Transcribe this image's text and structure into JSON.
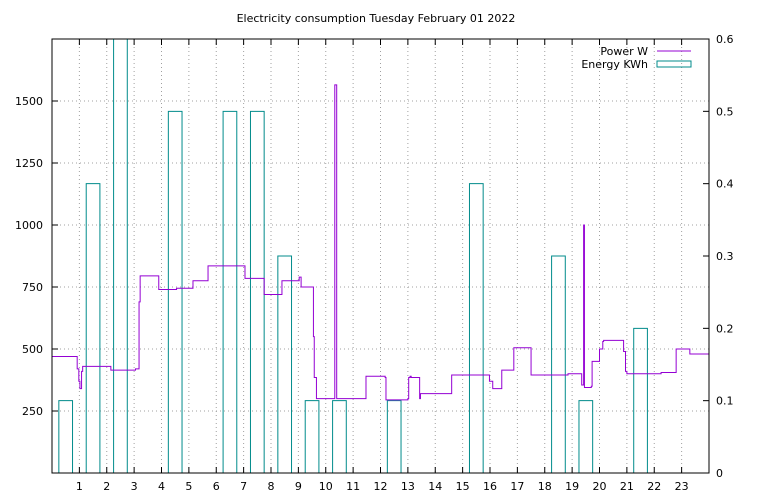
{
  "chart_data": {
    "type": "line",
    "title": "Electricity consumption Tuesday February 01 2022",
    "xlabel": "",
    "ylabel": "",
    "xlim": [
      0,
      24
    ],
    "ylim_left": [
      0,
      1750
    ],
    "ylim_right": [
      0,
      0.6
    ],
    "grid": true,
    "legend_position": "top-right",
    "x_ticks": [
      1,
      2,
      3,
      4,
      5,
      6,
      7,
      8,
      9,
      10,
      11,
      12,
      13,
      14,
      15,
      16,
      17,
      18,
      19,
      20,
      21,
      22,
      23
    ],
    "y_ticks_left": [
      250,
      500,
      750,
      1000,
      1250,
      1500
    ],
    "y_ticks_right": [
      0,
      0.1,
      0.2,
      0.3,
      0.4,
      0.5,
      0.6
    ],
    "series": [
      {
        "name": "Power W",
        "axis": "left",
        "kind": "step",
        "color": "#9400d3",
        "x": [
          0,
          0.92,
          0.98,
          1.02,
          1.08,
          1.12,
          2.12,
          2.15,
          3.02,
          3.05,
          3.18,
          3.22,
          3.85,
          3.9,
          4.5,
          4.55,
          5.1,
          5.15,
          5.65,
          5.7,
          7.0,
          7.05,
          7.7,
          7.75,
          8.35,
          8.4,
          9.0,
          9.03,
          9.06,
          9.1,
          9.55,
          9.58,
          9.62,
          9.66,
          10.3,
          10.33,
          10.4,
          11.43,
          11.47,
          12.17,
          12.2,
          13.0,
          13.03,
          13.08,
          13.12,
          13.43,
          13.46,
          14.6,
          14.65,
          15.98,
          16.0,
          16.1,
          16.43,
          16.47,
          16.87,
          16.92,
          17.5,
          17.55,
          18.85,
          18.9,
          19.35,
          19.38,
          19.42,
          19.45,
          19.7,
          19.73,
          19.98,
          20.0,
          20.12,
          20.15,
          20.85,
          20.88,
          20.95,
          21.0,
          22.2,
          22.25,
          22.75,
          22.8,
          23.25,
          23.3,
          24.0
        ],
        "y": [
          470,
          420,
          370,
          340,
          410,
          430,
          430,
          415,
          415,
          420,
          690,
          795,
          795,
          740,
          740,
          745,
          745,
          775,
          775,
          835,
          835,
          785,
          785,
          720,
          720,
          775,
          775,
          790,
          790,
          750,
          550,
          385,
          385,
          300,
          300,
          1565,
          300,
          300,
          390,
          385,
          295,
          300,
          385,
          390,
          385,
          300,
          320,
          395,
          395,
          370,
          370,
          340,
          415,
          415,
          505,
          505,
          395,
          395,
          400,
          400,
          355,
          355,
          1000,
          345,
          350,
          450,
          450,
          500,
          530,
          535,
          535,
          490,
          410,
          400,
          400,
          405,
          405,
          500,
          500,
          480,
          480
        ]
      },
      {
        "name": "Energy KWh",
        "axis": "right",
        "kind": "bar",
        "color": "#008b8b",
        "bar_width": 0.5,
        "x": [
          0.5,
          1.5,
          2.5,
          3.5,
          4.5,
          5.5,
          6.5,
          7.5,
          8.5,
          9.5,
          10.5,
          11.5,
          12.5,
          13.5,
          14.5,
          15.5,
          16.5,
          17.5,
          18.5,
          19.5,
          20.5,
          21.5,
          22.5,
          23.5
        ],
        "y": [
          0.1,
          0.4,
          0.6,
          0,
          0.5,
          0,
          0.5,
          0.5,
          0.3,
          0.1,
          0.1,
          0,
          0.1,
          0,
          0,
          0.4,
          0,
          0,
          0.3,
          0.1,
          0,
          0.2,
          0,
          0
        ]
      }
    ]
  }
}
